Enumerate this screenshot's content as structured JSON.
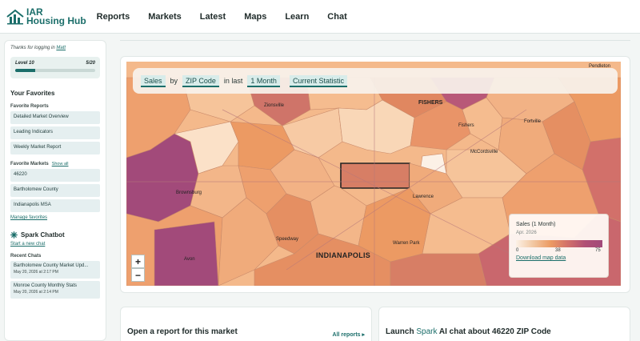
{
  "app": {
    "logo_line1": "IAR",
    "logo_line2": "Housing Hub"
  },
  "nav": {
    "items": [
      "Reports",
      "Markets",
      "Latest",
      "Maps",
      "Learn",
      "Chat"
    ]
  },
  "sidebar": {
    "thanks_prefix": "Thanks for logging in",
    "user": "Matt",
    "level_label": "Level 10",
    "level_progress_text": "5/20",
    "level_progress_fraction": 0.25,
    "favorites_title": "Your Favorites",
    "favorite_reports_title": "Favorite Reports",
    "favorite_reports": [
      "Detailed Market Overview",
      "Leading Indicators",
      "Weekly Market Report"
    ],
    "favorite_markets_title": "Favorite Markets",
    "show_all": "Show all",
    "favorite_markets": [
      "46220",
      "Bartholomew County",
      "Indianapolis MSA"
    ],
    "manage_favorites": "Manage favorites",
    "chatbot_title": "Spark Chatbot",
    "new_chat": "Start a new chat",
    "recent_chats_title": "Recent Chats",
    "recent_chats": [
      {
        "title": "Bartholomew County Market Upd...",
        "date": "May 20, 2026 at 2:17 PM"
      },
      {
        "title": "Monroe County Monthly Stats",
        "date": "May 20, 2026 at 2:14 PM"
      }
    ]
  },
  "map": {
    "filters": {
      "metric": "Sales",
      "by": "by",
      "geography": "ZIP Code",
      "in_last": "in last",
      "period": "1 Month",
      "statistic": "Current Statistic"
    },
    "zoom_in": "+",
    "zoom_out": "−",
    "legend": {
      "title": "Sales (1 Month)",
      "subtitle": "Apr. 2026",
      "min": "0",
      "mid": "38",
      "max": "75",
      "download": "Download map data"
    },
    "places": [
      "Pendleton",
      "Zionsville",
      "FISHERS",
      "Fishers",
      "Fortville",
      "Brownsburg",
      "McCordsville",
      "Lawrence",
      "Speedway",
      "Warren Park",
      "INDIANAPOLIS",
      "Avon"
    ],
    "colors": {
      "low": "#fcf1e6",
      "mid": "#ec9a63",
      "high": "#a24a7a"
    }
  },
  "cards": {
    "report_title": "Open a report for this market",
    "all_reports": "All reports ▸",
    "chat_prefix": "Launch",
    "chat_spark": "Spark",
    "chat_suffix": "AI chat about 46220 ZIP Code"
  }
}
